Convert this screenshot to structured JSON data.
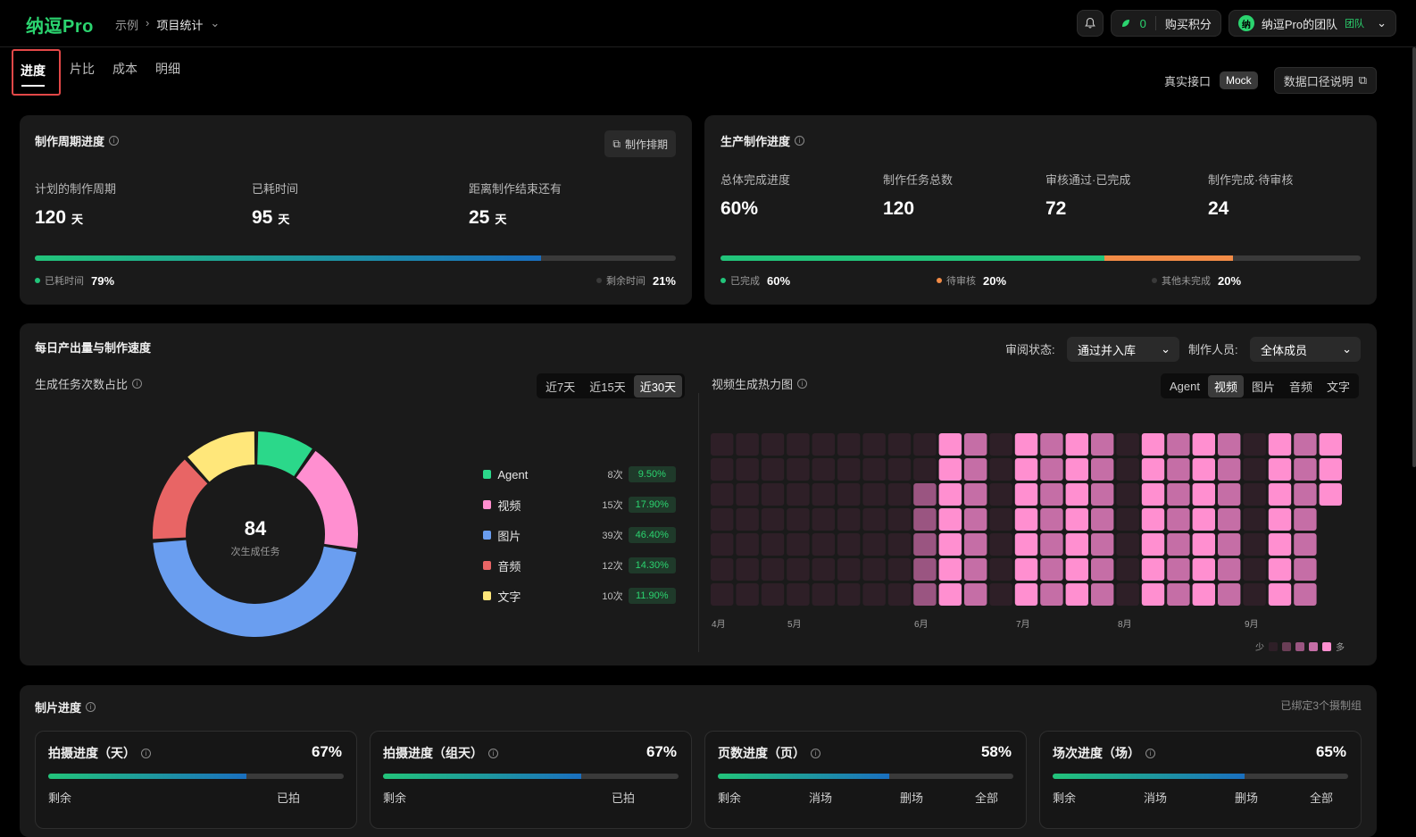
{
  "topbar": {
    "logo": "纳逗Pro",
    "breadcrumb": [
      "示例",
      "项目统计"
    ],
    "credits": "0",
    "buy_label": "购买积分",
    "team_avatar": "纳",
    "team_name": "纳逗Pro的团队",
    "team_tag": "团队"
  },
  "tabs": [
    "进度",
    "片比",
    "成本",
    "明细"
  ],
  "api": {
    "real_label": "真实接口",
    "mock_label": "Mock",
    "doc_label": "数据口径说明"
  },
  "cycle": {
    "title": "制作周期进度",
    "schedule_btn": "制作排期",
    "planned_label": "计划的制作周期",
    "planned_value": "120",
    "unit": "天",
    "elapsed_label": "已耗时间",
    "elapsed_value": "95",
    "remaining_label": "距离制作结束还有",
    "remaining_value": "25",
    "elapsed_pct_label": "已耗时间",
    "elapsed_pct": "79%",
    "elapsed_fraction": 0.79,
    "remain_pct_label": "剩余时间",
    "remain_pct": "21%"
  },
  "production": {
    "title": "生产制作进度",
    "total_label": "总体完成进度",
    "total_value": "60%",
    "tasks_label": "制作任务总数",
    "tasks_value": "120",
    "approved_label": "审核通过·已完成",
    "approved_value": "72",
    "pending_label": "制作完成·待审核",
    "pending_value": "24",
    "done_label": "已完成",
    "done_pct": "60%",
    "done_fraction": 0.6,
    "review_label": "待审核",
    "review_pct": "20%",
    "review_fraction": 0.2,
    "other_label": "其他未完成",
    "other_pct": "20%",
    "colors": {
      "done": "#22c47a",
      "review": "#f28b46",
      "other": "#3a3a3a"
    }
  },
  "daily": {
    "title": "每日产出量与制作速度",
    "review_status_label": "审阅状态:",
    "review_status_value": "通过并入库",
    "maker_label": "制作人员:",
    "maker_value": "全体成员",
    "ratio_title": "生成任务次数占比",
    "ranges": [
      "近7天",
      "近15天",
      "近30天"
    ],
    "total": "84",
    "total_label": "次生成任务",
    "heat_title": "视频生成热力图",
    "heat_types": [
      "Agent",
      "视频",
      "图片",
      "音频",
      "文字"
    ],
    "months": [
      "4月",
      "5月",
      "6月",
      "7月",
      "8月",
      "9月"
    ],
    "heat_legend_low": "少",
    "heat_legend_high": "多"
  },
  "chart_data": {
    "type": "pie",
    "categories": [
      "Agent",
      "视频",
      "图片",
      "音频",
      "文字"
    ],
    "values": [
      8,
      15,
      39,
      12,
      10
    ],
    "count_labels": [
      "8次",
      "15次",
      "39次",
      "12次",
      "10次"
    ],
    "percent_labels": [
      "9.50%",
      "17.90%",
      "46.40%",
      "14.30%",
      "11.90%"
    ],
    "colors": [
      "#2bd88a",
      "#ff8fd0",
      "#6a9ef0",
      "#e86565",
      "#ffe77a"
    ]
  },
  "shoot": {
    "title": "制片进度",
    "bound": "已绑定3个摄制组",
    "cards": [
      {
        "title": "拍摄进度（天）",
        "pct": "67%",
        "fraction": 0.67,
        "keys": [
          "剩余",
          "已拍"
        ]
      },
      {
        "title": "拍摄进度（组天）",
        "pct": "67%",
        "fraction": 0.67,
        "keys": [
          "剩余",
          "已拍"
        ]
      },
      {
        "title": "页数进度（页）",
        "pct": "58%",
        "fraction": 0.58,
        "keys": [
          "剩余",
          "消场",
          "删场",
          "全部"
        ]
      },
      {
        "title": "场次进度（场）",
        "pct": "65%",
        "fraction": 0.65,
        "keys": [
          "剩余",
          "消场",
          "删场",
          "全部"
        ]
      }
    ]
  }
}
